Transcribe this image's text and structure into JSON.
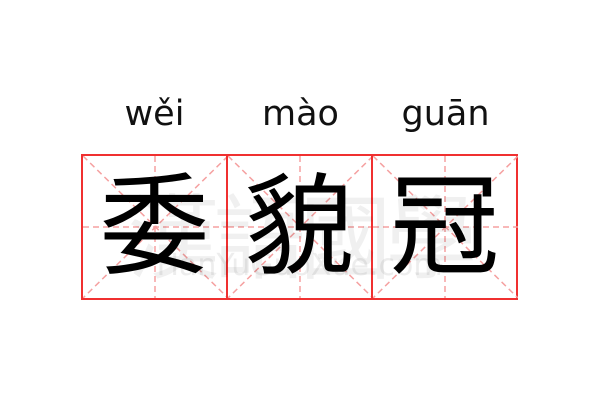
{
  "entries": [
    {
      "pinyin": "wěi",
      "char": "委"
    },
    {
      "pinyin": "mào",
      "char": "貌"
    },
    {
      "pinyin": "guān",
      "char": "冠"
    }
  ],
  "watermark": {
    "cn": "漢語國學",
    "url": "HanYuGuoXue.com"
  },
  "colors": {
    "grid_border": "#f03030",
    "guide_lines": "#f5a0a0"
  }
}
